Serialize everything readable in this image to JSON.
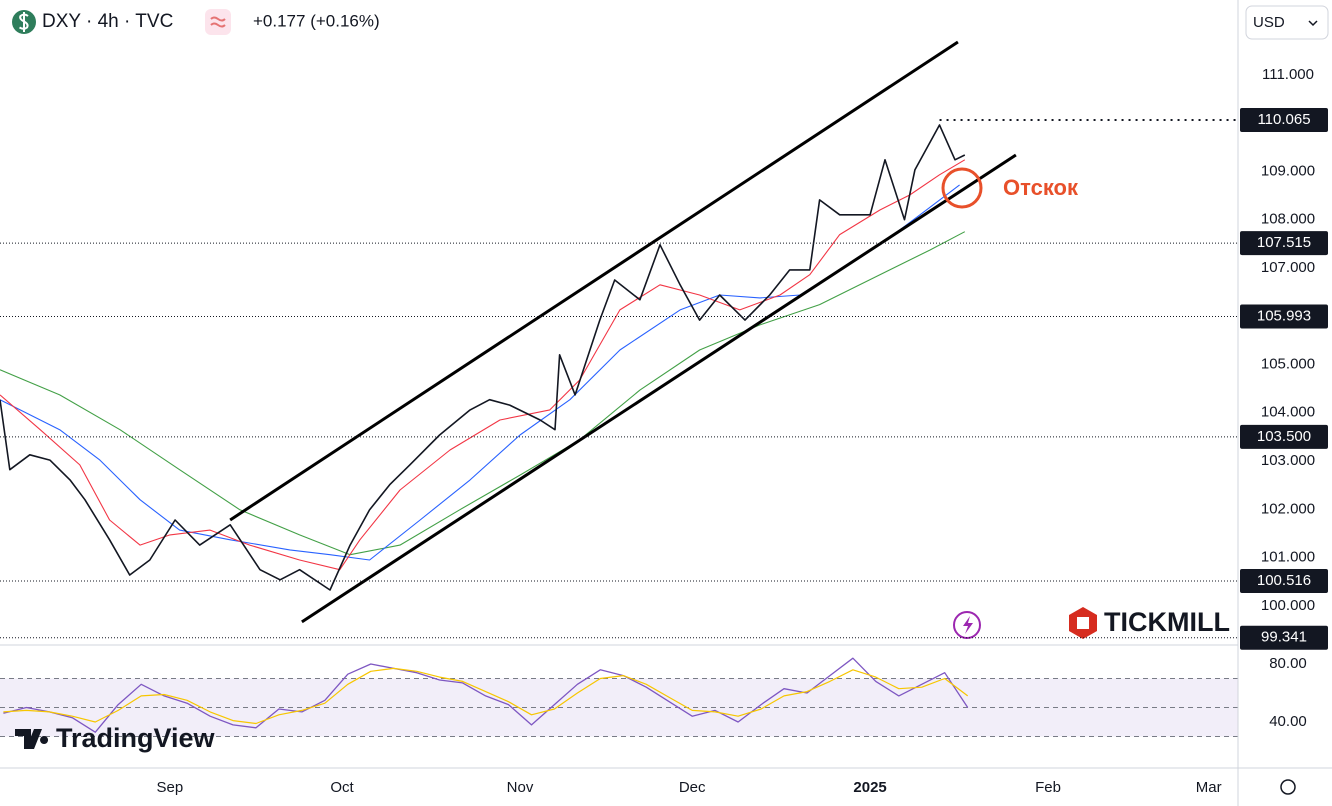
{
  "header": {
    "symbol": "DXY · 4h · TVC",
    "change": "+0.177 (+0.16%)",
    "currency": "USD"
  },
  "branding": {
    "logo": "TICKMILL",
    "watermark": "TradingView"
  },
  "chart_data": [
    {
      "type": "line",
      "annotation": "Отскок",
      "xlim": [
        -29.6,
        186.1
      ],
      "ylim": [
        99.19,
        112.55
      ],
      "xticks": [
        {
          "value": 0,
          "label": "Sep"
        },
        {
          "value": 30,
          "label": "Oct"
        },
        {
          "value": 61,
          "label": "Nov"
        },
        {
          "value": 91,
          "label": "Dec"
        },
        {
          "value": 122,
          "label": "2025"
        },
        {
          "value": 153,
          "label": "Feb"
        },
        {
          "value": 181,
          "label": "Mar"
        }
      ],
      "yticks": [
        {
          "value": 100,
          "label": "100.000"
        },
        {
          "value": 101,
          "label": "101.000"
        },
        {
          "value": 102,
          "label": "102.000"
        },
        {
          "value": 103,
          "label": "103.000"
        },
        {
          "value": 104,
          "label": "104.000"
        },
        {
          "value": 105,
          "label": "105.000"
        },
        {
          "value": 107,
          "label": "107.000"
        },
        {
          "value": 108,
          "label": "108.000"
        },
        {
          "value": 109,
          "label": "109.000"
        },
        {
          "value": 111,
          "label": "111.000"
        }
      ],
      "levels": [
        110.065,
        107.515,
        105.993,
        {
          "value": 103.5,
          "label": "103.500"
        },
        100.516,
        99.341
      ],
      "series": [
        {
          "color": "#131722",
          "x": [
            -29.6,
            -27.9,
            -24.4,
            -20.9,
            -17.4,
            -14.8,
            -10.5,
            -7.0,
            -3.5,
            0.9,
            5.2,
            10.5,
            15.7,
            19.2,
            22.6,
            27.9,
            31.4,
            34.8,
            38.3,
            41.8,
            47.0,
            52.3,
            55.7,
            59.2,
            64.5,
            67.1,
            67.9,
            70.6,
            74.9,
            77.5,
            81.9,
            85.4,
            88.9,
            92.3,
            95.8,
            100.2,
            104.5,
            108.0,
            111.5,
            113.2,
            116.7,
            122.0,
            124.6,
            128.0,
            129.8,
            134.1,
            136.8,
            138.5
          ],
          "values": [
            104.27,
            102.82,
            103.13,
            103.02,
            102.61,
            102.2,
            101.37,
            100.64,
            100.95,
            101.78,
            101.26,
            101.68,
            100.75,
            100.54,
            100.75,
            100.33,
            101.26,
            101.99,
            102.51,
            102.92,
            103.54,
            104.06,
            104.27,
            104.16,
            103.85,
            103.65,
            105.2,
            104.37,
            105.92,
            106.75,
            106.34,
            107.48,
            106.65,
            105.92,
            106.44,
            105.92,
            106.44,
            106.96,
            106.96,
            108.41,
            108.1,
            108.1,
            109.24,
            108.0,
            109.03,
            109.96,
            109.24,
            109.34
          ]
        },
        {
          "color": "#f23645",
          "x": [
            -29.6,
            -22.6,
            -15.7,
            -10.5,
            -5.2,
            0,
            7.0,
            13.9,
            22.6,
            29.6,
            33.1,
            40.1,
            48.8,
            57.5,
            66.2,
            71.4,
            78.4,
            85.4,
            92.3,
            99.3,
            106.3,
            111.5,
            116.7,
            123.7,
            128.9,
            134.1,
            138.5
          ],
          "values": [
            104.37,
            103.65,
            102.92,
            101.78,
            101.26,
            101.47,
            101.57,
            101.26,
            100.95,
            100.75,
            101.37,
            102.4,
            103.23,
            103.85,
            104.06,
            104.68,
            106.13,
            106.65,
            106.44,
            106.13,
            106.44,
            106.86,
            107.69,
            108.2,
            108.51,
            108.93,
            109.24
          ]
        },
        {
          "color": "#2962ff",
          "x": [
            -29.6,
            -19.2,
            -12.2,
            -5.2,
            1.7,
            10.5,
            20.9,
            27.9,
            34.8,
            43.6,
            52.3,
            61.0,
            69.7,
            78.4,
            88.9,
            95.8,
            102.8,
            109.8,
            116.7,
            123.7,
            130.7,
            137.6
          ],
          "values": [
            104.27,
            103.65,
            103.02,
            102.2,
            101.57,
            101.37,
            101.16,
            101.06,
            100.95,
            101.78,
            102.61,
            103.54,
            104.27,
            105.3,
            106.13,
            106.44,
            106.38,
            106.44,
            106.96,
            107.48,
            108.1,
            108.72
          ]
        },
        {
          "color": "#43a047",
          "x": [
            -29.6,
            -19.2,
            -8.7,
            1.7,
            12.2,
            22.6,
            31.4,
            40.1,
            50.5,
            61.0,
            71.4,
            81.9,
            92.3,
            102.8,
            113.2,
            123.7,
            132.4,
            138.5
          ],
          "values": [
            104.89,
            104.37,
            103.65,
            102.82,
            101.99,
            101.47,
            101.06,
            101.26,
            101.99,
            102.71,
            103.44,
            104.47,
            105.3,
            105.82,
            106.24,
            106.86,
            107.37,
            107.75
          ]
        }
      ],
      "trendlines": [
        {
          "x": [
            10.5,
            137.3
          ],
          "values": [
            101.78,
            111.68
          ]
        },
        {
          "x": [
            23.0,
            147.4
          ],
          "values": [
            99.67,
            109.34
          ]
        }
      ]
    },
    {
      "type": "line",
      "ylim": [
        8.3,
        93.1
      ],
      "yticks": [
        {
          "value": 80,
          "label": "80.00"
        },
        {
          "value": 40,
          "label": "40.00"
        }
      ],
      "levels": [
        70,
        50,
        30
      ],
      "band": [
        30,
        70
      ],
      "series": [
        {
          "color": "#7e57c2",
          "x": [
            -29,
            -25,
            -21,
            -17,
            -13,
            -9,
            -5,
            -1,
            3,
            7,
            11,
            15,
            19,
            23,
            27,
            31,
            35,
            39,
            43,
            47,
            51,
            55,
            59,
            63,
            67,
            71,
            75,
            79,
            83,
            87,
            91,
            95,
            99,
            103,
            107,
            111,
            115,
            119,
            123,
            127,
            131,
            135,
            139
          ],
          "values": [
            46,
            50,
            47,
            43,
            33,
            52,
            66,
            58,
            53,
            44,
            38,
            36,
            49,
            47,
            55,
            73,
            80,
            77,
            74,
            69,
            67,
            58,
            52,
            38,
            52,
            66,
            76,
            72,
            64,
            54,
            44,
            48,
            40,
            52,
            63,
            60,
            72,
            84,
            68,
            58,
            66,
            74,
            50
          ]
        },
        {
          "color": "#f7c600",
          "x": [
            -29,
            -25,
            -21,
            -17,
            -13,
            -9,
            -5,
            -1,
            3,
            7,
            11,
            15,
            19,
            23,
            27,
            31,
            35,
            39,
            43,
            47,
            51,
            55,
            59,
            63,
            67,
            71,
            75,
            79,
            83,
            87,
            91,
            95,
            99,
            103,
            107,
            111,
            115,
            119,
            123,
            127,
            131,
            135,
            139
          ],
          "values": [
            47,
            48,
            47,
            44,
            40,
            48,
            58,
            59,
            55,
            47,
            41,
            39,
            45,
            48,
            53,
            66,
            75,
            77,
            75,
            71,
            68,
            61,
            54,
            45,
            49,
            60,
            70,
            72,
            66,
            57,
            48,
            47,
            44,
            49,
            58,
            61,
            68,
            76,
            71,
            63,
            64,
            70,
            58
          ]
        }
      ]
    }
  ]
}
